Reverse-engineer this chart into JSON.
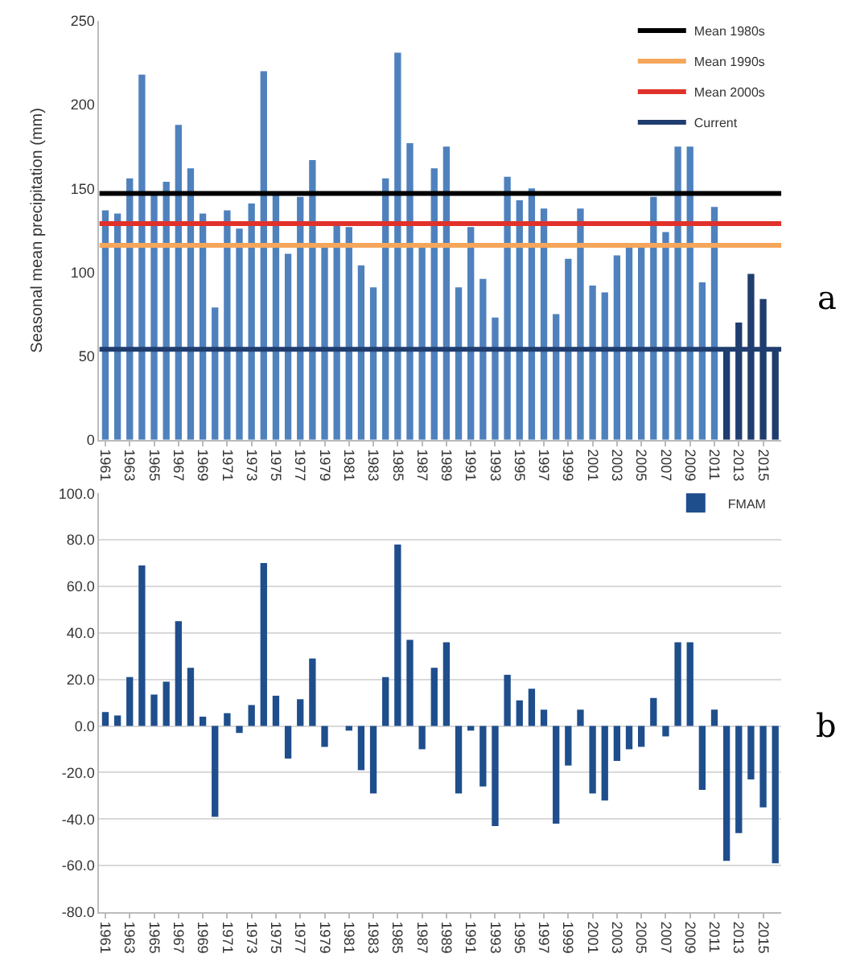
{
  "chart_data": [
    {
      "type": "bar",
      "ylabel": "Seasonal mean precipitation (mm)",
      "categories": [
        "1961",
        null,
        "1963",
        null,
        "1965",
        null,
        "1967",
        null,
        "1969",
        null,
        "1971",
        null,
        "1973",
        null,
        "1975",
        null,
        "1977",
        null,
        "1979",
        null,
        "1981",
        null,
        "1983",
        null,
        "1985",
        null,
        "1987",
        null,
        "1989",
        null,
        "1991",
        null,
        "1993",
        null,
        "1995",
        null,
        "1997",
        null,
        "1999",
        null,
        "2001",
        null,
        "2003",
        null,
        "2005",
        null,
        "2007",
        null,
        "2009",
        null,
        "2011",
        null,
        "2013",
        null,
        "2015",
        null
      ],
      "values": [
        137,
        135,
        156,
        218,
        147,
        154,
        188,
        162,
        135,
        79,
        137,
        126,
        141,
        220,
        147,
        111,
        145,
        167,
        115,
        128,
        127,
        104,
        91,
        156,
        231,
        177,
        115,
        162,
        175,
        91,
        127,
        96,
        73,
        157,
        143,
        150,
        138,
        75,
        108,
        138,
        92,
        88,
        110,
        116,
        116,
        145,
        124,
        175,
        175,
        94,
        139,
        54,
        70,
        99,
        84,
        54
      ],
      "colors": [
        "#4f81bd",
        "#4f81bd",
        "#4f81bd",
        "#4f81bd",
        "#4f81bd",
        "#4f81bd",
        "#4f81bd",
        "#4f81bd",
        "#4f81bd",
        "#4f81bd",
        "#4f81bd",
        "#4f81bd",
        "#4f81bd",
        "#4f81bd",
        "#4f81bd",
        "#4f81bd",
        "#4f81bd",
        "#4f81bd",
        "#4f81bd",
        "#4f81bd",
        "#4f81bd",
        "#4f81bd",
        "#4f81bd",
        "#4f81bd",
        "#4f81bd",
        "#4f81bd",
        "#4f81bd",
        "#4f81bd",
        "#4f81bd",
        "#4f81bd",
        "#4f81bd",
        "#4f81bd",
        "#4f81bd",
        "#4f81bd",
        "#4f81bd",
        "#4f81bd",
        "#4f81bd",
        "#4f81bd",
        "#4f81bd",
        "#4f81bd",
        "#4f81bd",
        "#4f81bd",
        "#4f81bd",
        "#4f81bd",
        "#4f81bd",
        "#4f81bd",
        "#4f81bd",
        "#4f81bd",
        "#4f81bd",
        "#4f81bd",
        "#4f81bd",
        "#1f3d6e",
        "#1f3d6e",
        "#1f3d6e",
        "#1f3d6e",
        "#1f3d6e"
      ],
      "ref_lines": [
        {
          "axis": "y",
          "value": 147,
          "label": "Mean 1980s",
          "color": "#000000"
        },
        {
          "axis": "y",
          "value": 116,
          "label": "Mean 1990s",
          "color": "#f5a65b"
        },
        {
          "axis": "y",
          "value": 129,
          "label": "Mean 2000s",
          "color": "#e0312a"
        },
        {
          "axis": "y",
          "value": 54,
          "label": "Current",
          "color": "#1f3d6e"
        }
      ],
      "ylim": [
        0,
        250
      ],
      "yticks": [
        0,
        50,
        100,
        150,
        200,
        250
      ],
      "grid": false,
      "legend": "top right",
      "annotations": [
        "a"
      ]
    },
    {
      "type": "bar",
      "categories": [
        "1961",
        null,
        "1963",
        null,
        "1965",
        null,
        "1967",
        null,
        "1969",
        null,
        "1971",
        null,
        "1973",
        null,
        "1975",
        null,
        "1977",
        null,
        "1979",
        null,
        "1981",
        null,
        "1983",
        null,
        "1985",
        null,
        "1987",
        null,
        "1989",
        null,
        "1991",
        null,
        "1993",
        null,
        "1995",
        null,
        "1997",
        null,
        "1999",
        null,
        "2001",
        null,
        "2003",
        null,
        "2005",
        null,
        "2007",
        null,
        "2009",
        null,
        "2011",
        null,
        "2013",
        null,
        "2015",
        null
      ],
      "series": [
        {
          "name": "FMAM",
          "color": "#1f4e8c",
          "values": [
            6,
            4.5,
            21,
            69,
            13.5,
            19,
            45,
            25,
            4,
            -39,
            5.5,
            -3,
            9,
            70,
            13,
            -14,
            11.5,
            29,
            -9,
            0,
            -2,
            -19,
            -29,
            21,
            78,
            37,
            -10,
            25,
            36,
            -29,
            -2,
            -26,
            -43,
            22,
            11,
            16,
            7,
            -42,
            -17,
            7,
            -29,
            -32,
            -15,
            -10,
            -9,
            12,
            -4.5,
            36,
            36,
            -27.5,
            7,
            -58,
            -46,
            -23,
            -35,
            -59
          ]
        }
      ],
      "ylim": [
        -80,
        100
      ],
      "yticks": [
        {
          "value": -80,
          "label": "-80.0"
        },
        {
          "value": -60,
          "label": "-60.0"
        },
        {
          "value": -40,
          "label": "-40.0"
        },
        {
          "value": -20,
          "label": "-20.0"
        },
        {
          "value": 0,
          "label": "0.0"
        },
        {
          "value": 20,
          "label": "20.0"
        },
        {
          "value": 40,
          "label": "40.0"
        },
        {
          "value": 60,
          "label": "60.0"
        },
        {
          "value": 80,
          "label": "80.0"
        },
        {
          "value": 100,
          "label": "100.0"
        }
      ],
      "grid": "y",
      "legend": "top right",
      "annotations": [
        "b"
      ]
    }
  ]
}
